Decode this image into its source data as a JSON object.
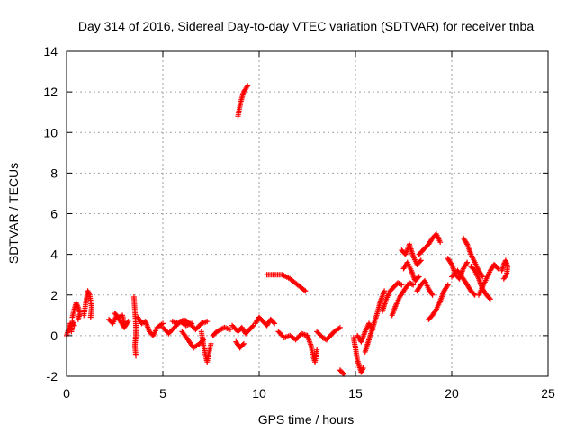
{
  "chart_data": {
    "type": "scatter",
    "title": "Day 314 of 2016, Sidereal Day-to-day VTEC variation (SDTVAR) for receiver tnba",
    "xlabel": "GPS time / hours",
    "ylabel": "SDTVAR / TECUs",
    "xlim": [
      0,
      25
    ],
    "ylim": [
      -2,
      14
    ],
    "xticks": [
      0,
      5,
      10,
      15,
      20,
      25
    ],
    "yticks": [
      -2,
      0,
      2,
      4,
      6,
      8,
      10,
      12,
      14
    ],
    "grid": true,
    "marker": "+",
    "series_color": "#ff0000",
    "tracks": [
      {
        "points": [
          [
            0.0,
            0.0
          ],
          [
            0.1,
            0.3
          ],
          [
            0.2,
            0.6
          ],
          [
            0.25,
            0.2
          ],
          [
            0.3,
            0.7
          ],
          [
            0.4,
            0.5
          ]
        ]
      },
      {
        "points": [
          [
            0.3,
            0.9
          ],
          [
            0.4,
            1.3
          ],
          [
            0.5,
            1.6
          ],
          [
            0.6,
            1.4
          ],
          [
            0.7,
            1.1
          ],
          [
            0.6,
            0.8
          ]
        ]
      },
      {
        "points": [
          [
            0.9,
            1.0
          ],
          [
            1.0,
            1.6
          ],
          [
            1.1,
            2.2
          ],
          [
            1.2,
            2.0
          ],
          [
            1.3,
            1.4
          ],
          [
            1.25,
            0.9
          ]
        ]
      },
      {
        "points": [
          [
            2.2,
            0.8
          ],
          [
            2.4,
            0.6
          ],
          [
            2.6,
            1.0
          ],
          [
            2.8,
            0.7
          ],
          [
            3.0,
            0.4
          ],
          [
            3.2,
            0.7
          ]
        ]
      },
      {
        "points": [
          [
            2.5,
            1.1
          ],
          [
            2.7,
            0.9
          ],
          [
            2.9,
            1.0
          ],
          [
            3.0,
            0.6
          ]
        ]
      },
      {
        "points": [
          [
            3.5,
            1.9
          ],
          [
            3.55,
            1.2
          ],
          [
            3.6,
            0.5
          ],
          [
            3.6,
            0.0
          ],
          [
            3.55,
            -0.5
          ],
          [
            3.6,
            -1.0
          ]
        ]
      },
      {
        "points": [
          [
            3.7,
            0.9
          ],
          [
            3.9,
            0.6
          ],
          [
            4.1,
            0.7
          ],
          [
            4.3,
            0.2
          ],
          [
            4.5,
            0.0
          ],
          [
            4.7,
            0.4
          ],
          [
            5.0,
            0.6
          ]
        ]
      },
      {
        "points": [
          [
            5.0,
            0.4
          ],
          [
            5.3,
            0.1
          ],
          [
            5.6,
            0.4
          ],
          [
            5.9,
            0.7
          ],
          [
            6.2,
            0.5
          ],
          [
            6.5,
            0.6
          ]
        ]
      },
      {
        "points": [
          [
            5.5,
            0.7
          ],
          [
            5.8,
            0.6
          ],
          [
            6.1,
            0.8
          ],
          [
            6.4,
            0.6
          ],
          [
            6.7,
            0.3
          ],
          [
            7.0,
            0.6
          ],
          [
            7.3,
            0.7
          ]
        ]
      },
      {
        "points": [
          [
            6.0,
            0.2
          ],
          [
            6.3,
            -0.2
          ],
          [
            6.6,
            -0.6
          ],
          [
            6.9,
            -0.4
          ],
          [
            7.1,
            -0.2
          ]
        ]
      },
      {
        "points": [
          [
            7.0,
            0.2
          ],
          [
            7.1,
            -0.4
          ],
          [
            7.2,
            -0.9
          ],
          [
            7.3,
            -1.3
          ],
          [
            7.4,
            -0.8
          ],
          [
            7.5,
            -0.4
          ]
        ]
      },
      {
        "points": [
          [
            7.6,
            0.0
          ],
          [
            7.8,
            0.2
          ],
          [
            8.0,
            0.3
          ],
          [
            8.2,
            0.4
          ],
          [
            8.5,
            0.3
          ]
        ]
      },
      {
        "points": [
          [
            8.6,
            0.5
          ],
          [
            8.9,
            0.2
          ],
          [
            9.1,
            0.4
          ],
          [
            9.3,
            0.1
          ],
          [
            9.5,
            0.3
          ],
          [
            9.7,
            0.5
          ]
        ]
      },
      {
        "points": [
          [
            8.8,
            -0.3
          ],
          [
            9.0,
            -0.6
          ],
          [
            9.2,
            -0.4
          ]
        ]
      },
      {
        "points": [
          [
            8.9,
            10.8
          ],
          [
            9.0,
            11.3
          ],
          [
            9.1,
            11.7
          ],
          [
            9.2,
            12.0
          ],
          [
            9.4,
            12.3
          ]
        ]
      },
      {
        "points": [
          [
            9.8,
            0.6
          ],
          [
            10.0,
            0.9
          ],
          [
            10.2,
            0.7
          ],
          [
            10.4,
            0.5
          ],
          [
            10.6,
            0.8
          ],
          [
            10.8,
            0.6
          ]
        ]
      },
      {
        "points": [
          [
            10.4,
            3.0
          ],
          [
            10.8,
            3.0
          ],
          [
            11.2,
            3.0
          ],
          [
            11.6,
            2.8
          ],
          [
            12.0,
            2.5
          ],
          [
            12.4,
            2.2
          ]
        ]
      },
      {
        "points": [
          [
            11.0,
            0.2
          ],
          [
            11.3,
            -0.1
          ],
          [
            11.6,
            0.0
          ],
          [
            11.9,
            -0.2
          ],
          [
            12.2,
            0.1
          ],
          [
            12.5,
            0.0
          ]
        ]
      },
      {
        "points": [
          [
            12.5,
            0.0
          ],
          [
            12.7,
            -0.5
          ],
          [
            12.8,
            -1.0
          ],
          [
            12.9,
            -1.3
          ],
          [
            13.0,
            -0.7
          ]
        ]
      },
      {
        "points": [
          [
            13.0,
            0.2
          ],
          [
            13.3,
            -0.1
          ],
          [
            13.5,
            -0.2
          ],
          [
            13.7,
            0.0
          ],
          [
            13.9,
            0.2
          ],
          [
            14.2,
            0.4
          ]
        ]
      },
      {
        "points": [
          [
            14.2,
            -1.7
          ],
          [
            14.3,
            -1.8
          ],
          [
            14.4,
            -1.9
          ]
        ]
      },
      {
        "points": [
          [
            14.9,
            -0.1
          ],
          [
            15.0,
            -0.6
          ],
          [
            15.1,
            -1.2
          ],
          [
            15.2,
            -1.5
          ],
          [
            15.3,
            -1.8
          ],
          [
            15.4,
            -1.6
          ]
        ]
      },
      {
        "points": [
          [
            15.1,
            0.0
          ],
          [
            15.3,
            -0.3
          ],
          [
            15.5,
            0.2
          ],
          [
            15.7,
            0.6
          ],
          [
            15.9,
            0.3
          ]
        ]
      },
      {
        "points": [
          [
            15.5,
            -0.8
          ],
          [
            15.7,
            -0.2
          ],
          [
            15.9,
            0.4
          ],
          [
            16.1,
            1.0
          ],
          [
            16.3,
            1.7
          ],
          [
            16.5,
            2.2
          ]
        ]
      },
      {
        "points": [
          [
            16.4,
            1.2
          ],
          [
            16.6,
            1.8
          ],
          [
            16.8,
            2.2
          ],
          [
            17.0,
            2.4
          ],
          [
            17.2,
            2.6
          ],
          [
            17.4,
            2.5
          ]
        ]
      },
      {
        "points": [
          [
            16.9,
            1.0
          ],
          [
            17.1,
            1.5
          ],
          [
            17.3,
            1.9
          ],
          [
            17.5,
            2.2
          ],
          [
            17.8,
            2.6
          ],
          [
            18.0,
            2.5
          ]
        ]
      },
      {
        "points": [
          [
            17.4,
            4.2
          ],
          [
            17.6,
            4.0
          ],
          [
            17.8,
            4.5
          ],
          [
            18.0,
            3.9
          ],
          [
            18.2,
            3.5
          ],
          [
            18.4,
            3.7
          ]
        ]
      },
      {
        "points": [
          [
            17.5,
            3.3
          ],
          [
            17.7,
            3.6
          ],
          [
            17.9,
            3.2
          ],
          [
            18.1,
            2.7
          ],
          [
            18.3,
            2.9
          ]
        ]
      },
      {
        "points": [
          [
            18.3,
            4.0
          ],
          [
            18.5,
            4.2
          ],
          [
            18.8,
            4.5
          ],
          [
            19.0,
            4.8
          ],
          [
            19.2,
            5.0
          ],
          [
            19.4,
            4.6
          ]
        ]
      },
      {
        "points": [
          [
            18.2,
            2.2
          ],
          [
            18.4,
            2.5
          ],
          [
            18.6,
            2.7
          ],
          [
            18.8,
            2.3
          ],
          [
            19.0,
            2.0
          ]
        ]
      },
      {
        "points": [
          [
            18.8,
            0.8
          ],
          [
            19.0,
            1.0
          ],
          [
            19.2,
            1.3
          ],
          [
            19.4,
            1.7
          ],
          [
            19.6,
            2.2
          ],
          [
            19.8,
            2.5
          ]
        ]
      },
      {
        "points": [
          [
            19.8,
            3.8
          ],
          [
            20.0,
            3.5
          ],
          [
            20.2,
            3.0
          ],
          [
            20.4,
            2.8
          ],
          [
            20.6,
            3.3
          ],
          [
            20.8,
            3.6
          ]
        ]
      },
      {
        "points": [
          [
            20.0,
            2.9
          ],
          [
            20.3,
            3.2
          ],
          [
            20.6,
            2.8
          ],
          [
            20.8,
            2.5
          ],
          [
            21.0,
            2.2
          ],
          [
            21.2,
            2.0
          ]
        ]
      },
      {
        "points": [
          [
            20.6,
            4.8
          ],
          [
            20.8,
            4.5
          ],
          [
            21.0,
            4.0
          ],
          [
            21.2,
            3.6
          ],
          [
            21.4,
            3.2
          ],
          [
            21.6,
            2.9
          ]
        ]
      },
      {
        "points": [
          [
            21.0,
            3.4
          ],
          [
            21.2,
            3.2
          ],
          [
            21.4,
            2.8
          ],
          [
            21.6,
            2.3
          ],
          [
            21.8,
            2.0
          ],
          [
            22.0,
            1.8
          ]
        ]
      },
      {
        "points": [
          [
            21.4,
            2.0
          ],
          [
            21.6,
            2.4
          ],
          [
            21.8,
            2.8
          ],
          [
            22.0,
            3.2
          ],
          [
            22.2,
            3.5
          ],
          [
            22.4,
            3.3
          ]
        ]
      },
      {
        "points": [
          [
            22.6,
            3.2
          ],
          [
            22.7,
            3.5
          ],
          [
            22.8,
            3.7
          ],
          [
            22.9,
            3.4
          ],
          [
            22.85,
            3.0
          ],
          [
            22.7,
            2.8
          ]
        ]
      }
    ]
  }
}
